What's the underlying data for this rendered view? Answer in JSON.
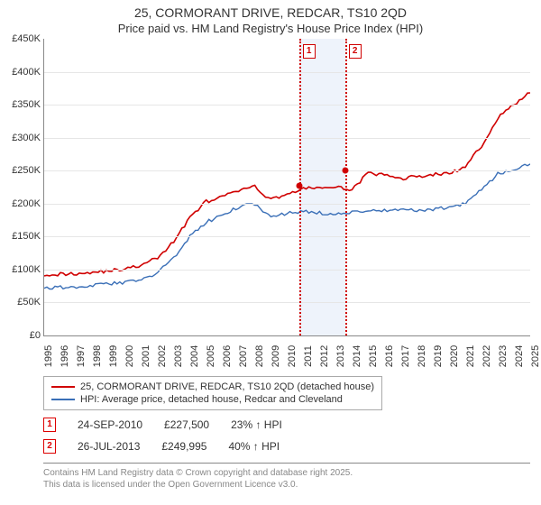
{
  "title": "25, CORMORANT DRIVE, REDCAR, TS10 2QD",
  "subtitle": "Price paid vs. HM Land Registry's House Price Index (HPI)",
  "chart": {
    "type": "line",
    "background_color": "#ffffff",
    "grid_color": "#e6e6e6",
    "axis_color": "#888888",
    "y_axis": {
      "min": 0,
      "max": 450000,
      "step": 50000,
      "labels": [
        "£0",
        "£50K",
        "£100K",
        "£150K",
        "£200K",
        "£250K",
        "£300K",
        "£350K",
        "£400K",
        "£450K"
      ]
    },
    "x_axis": {
      "years": [
        1995,
        1996,
        1997,
        1998,
        1999,
        2000,
        2001,
        2002,
        2003,
        2004,
        2005,
        2006,
        2007,
        2008,
        2009,
        2010,
        2011,
        2012,
        2013,
        2014,
        2015,
        2016,
        2017,
        2018,
        2019,
        2020,
        2021,
        2022,
        2023,
        2024,
        2025
      ]
    },
    "band": {
      "color": "#eef3fb"
    },
    "series": [
      {
        "id": "property",
        "color": "#d00000",
        "width": 1.6,
        "values": [
          93000,
          93000,
          94000,
          96000,
          98000,
          101000,
          106000,
          118000,
          142000,
          180000,
          203000,
          210000,
          220000,
          225000,
          206000,
          215000,
          222000,
          225000,
          224000,
          222000,
          246000,
          243000,
          238000,
          241000,
          244000,
          246000,
          255000,
          288000,
          330000,
          350000,
          368000
        ]
      },
      {
        "id": "hpi",
        "color": "#3a6fb7",
        "width": 1.4,
        "values": [
          73000,
          73000,
          74000,
          76000,
          78000,
          80000,
          85000,
          95000,
          118000,
          150000,
          172000,
          182000,
          195000,
          200000,
          180000,
          185000,
          188000,
          186000,
          184000,
          186000,
          190000,
          190000,
          189000,
          190000,
          192000,
          194000,
          200000,
          222000,
          245000,
          252000,
          260000
        ]
      }
    ],
    "markers": [
      {
        "label": "1",
        "year_frac": 2010.73,
        "value": 227500,
        "color": "#d00000"
      },
      {
        "label": "2",
        "year_frac": 2013.57,
        "value": 249995,
        "color": "#d00000"
      }
    ]
  },
  "legend": {
    "items": [
      {
        "color": "#d00000",
        "label": "25, CORMORANT DRIVE, REDCAR, TS10 2QD (detached house)"
      },
      {
        "color": "#3a6fb7",
        "label": "HPI: Average price, detached house, Redcar and Cleveland"
      }
    ]
  },
  "sales": [
    {
      "marker": "1",
      "date": "24-SEP-2010",
      "price": "£227,500",
      "diff": "23% ↑ HPI"
    },
    {
      "marker": "2",
      "date": "26-JUL-2013",
      "price": "£249,995",
      "diff": "40% ↑ HPI"
    }
  ],
  "footer": {
    "line1": "Contains HM Land Registry data © Crown copyright and database right 2025.",
    "line2": "This data is licensed under the Open Government Licence v3.0."
  }
}
